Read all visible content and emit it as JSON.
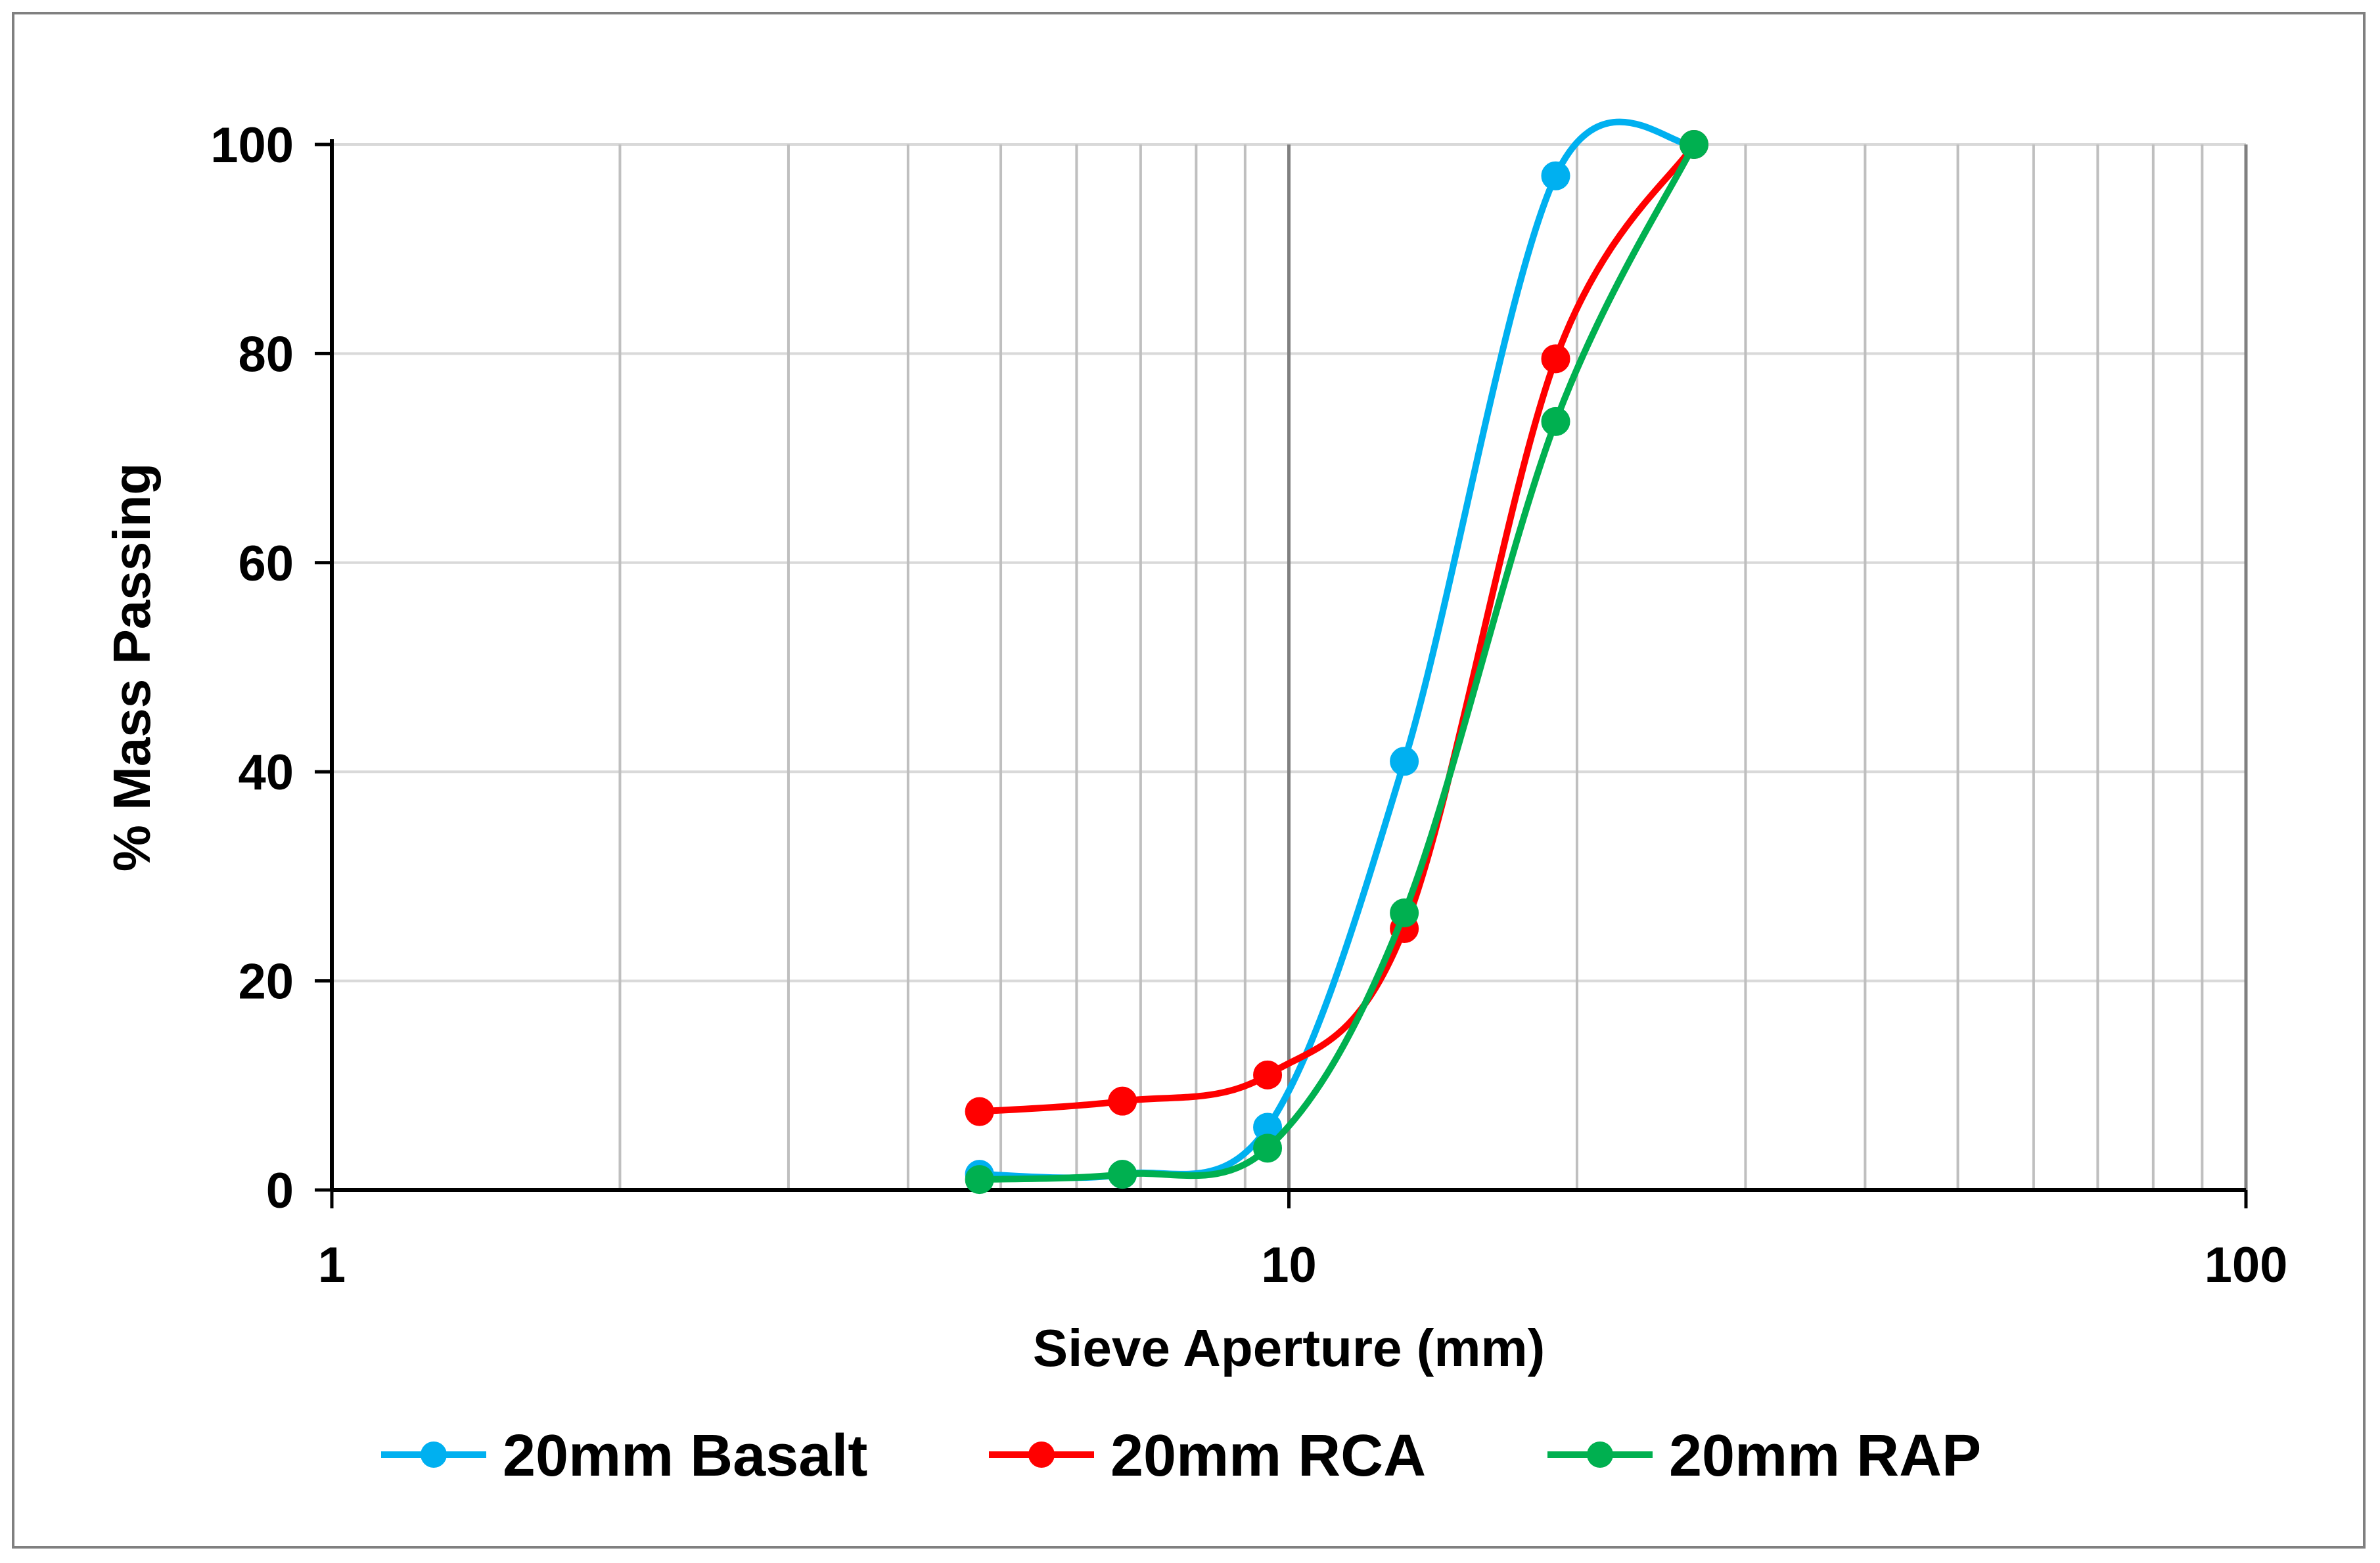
{
  "chart_data": {
    "type": "line",
    "title": "",
    "xlabel": "Sieve Aperture (mm)",
    "ylabel": "% Mass Passing",
    "x_scale": "log",
    "xlim": [
      1,
      100
    ],
    "ylim": [
      0,
      100
    ],
    "x_ticks": [
      "1",
      "10",
      "100"
    ],
    "y_ticks": [
      "0",
      "20",
      "40",
      "60",
      "80",
      "100"
    ],
    "grid": true,
    "legend_position": "bottom",
    "series": [
      {
        "name": "20mm Basalt",
        "color": "#00B0F0",
        "x": [
          4.75,
          6.7,
          9.5,
          13.2,
          19,
          26.5
        ],
        "y": [
          1.5,
          1.5,
          6,
          41,
          97,
          100
        ]
      },
      {
        "name": "20mm RCA",
        "color": "#FF0000",
        "x": [
          4.75,
          6.7,
          9.5,
          13.2,
          19,
          26.5
        ],
        "y": [
          7.5,
          8.5,
          11,
          25,
          79.5,
          100
        ]
      },
      {
        "name": "20mm RAP",
        "color": "#00B050",
        "x": [
          4.75,
          6.7,
          9.5,
          13.2,
          19,
          26.5
        ],
        "y": [
          1,
          1.5,
          4,
          26.5,
          73.5,
          100
        ]
      }
    ]
  }
}
